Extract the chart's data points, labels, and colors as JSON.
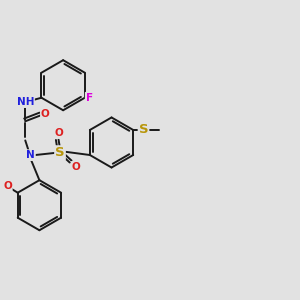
{
  "bg_color": "#e2e2e2",
  "bond_color": "#1a1a1a",
  "bond_width": 1.4,
  "atom_colors": {
    "N": "#2020dd",
    "O": "#dd2020",
    "S": "#b8960a",
    "F": "#dd00dd",
    "H": "#666666",
    "C": "#1a1a1a"
  },
  "font_size": 7.5
}
